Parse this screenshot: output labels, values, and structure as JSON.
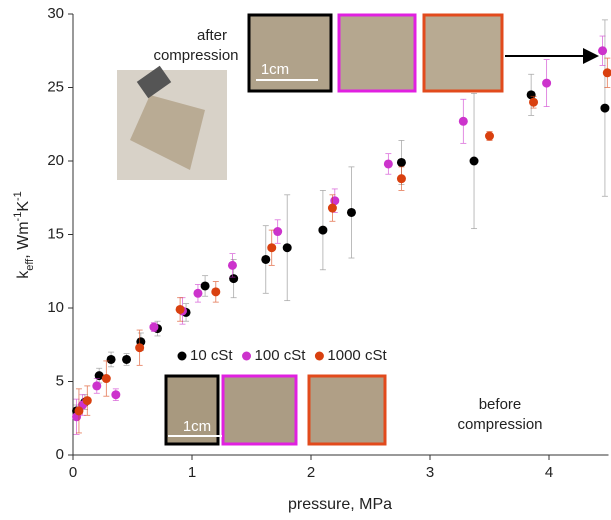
{
  "chart_data": {
    "type": "scatter",
    "x_label": "pressure, MPa",
    "y_label_parts": [
      "k",
      "eff",
      ", Wm",
      "-1",
      "K",
      "-1"
    ],
    "xlim": [
      0,
      4.5
    ],
    "ylim": [
      0,
      30
    ],
    "xticks": [
      0,
      1,
      2,
      3,
      4
    ],
    "yticks": [
      0,
      5,
      10,
      15,
      20,
      25,
      30
    ],
    "grid": false,
    "legend": "middle-left",
    "top_note": [
      "after",
      "compression"
    ],
    "bottom_note": [
      "before",
      "compression"
    ],
    "scale_label": "1cm",
    "series": [
      {
        "name": "10 cSt",
        "color": "#000000",
        "x": [
          0.03,
          0.1,
          0.22,
          0.32,
          0.45,
          0.57,
          0.71,
          0.95,
          1.11,
          1.35,
          1.62,
          1.8,
          2.1,
          2.34,
          2.76,
          3.37,
          3.85,
          4.47
        ],
        "values": [
          3.0,
          3.6,
          5.4,
          6.5,
          6.5,
          7.7,
          8.6,
          9.7,
          11.5,
          12.0,
          13.3,
          14.1,
          15.3,
          16.5,
          19.9,
          20.0,
          24.5,
          23.6
        ],
        "errors": [
          0.4,
          0.5,
          0.5,
          0.5,
          0.4,
          0.6,
          0.5,
          0.6,
          0.7,
          1.3,
          2.3,
          3.6,
          2.7,
          3.1,
          1.5,
          4.6,
          1.4,
          6.0
        ]
      },
      {
        "name": "100 cSt",
        "color": "#cc33cc",
        "x": [
          0.03,
          0.08,
          0.2,
          0.36,
          0.68,
          0.92,
          1.05,
          1.34,
          1.72,
          2.2,
          2.65,
          3.28,
          3.98,
          4.45
        ],
        "values": [
          2.6,
          3.4,
          4.7,
          4.1,
          8.7,
          9.8,
          11.0,
          12.9,
          15.2,
          17.3,
          19.8,
          22.7,
          25.3,
          27.5
        ],
        "errors": [
          1.2,
          0.7,
          0.5,
          0.4,
          0.3,
          0.9,
          0.6,
          0.8,
          0.8,
          0.8,
          0.7,
          1.5,
          1.6,
          1.0
        ]
      },
      {
        "name": "1000 cSt",
        "color": "#d9400f",
        "x": [
          0.05,
          0.12,
          0.28,
          0.56,
          0.9,
          1.2,
          1.67,
          2.18,
          2.76,
          3.5,
          3.87,
          4.49
        ],
        "values": [
          3.0,
          3.7,
          5.2,
          7.3,
          9.9,
          11.1,
          14.1,
          16.8,
          18.8,
          21.7,
          24.0,
          26.0
        ],
        "errors": [
          1.5,
          1.0,
          1.2,
          1.2,
          0.8,
          0.7,
          1.2,
          0.9,
          0.8,
          0.3,
          0.4,
          1.0
        ]
      }
    ]
  }
}
